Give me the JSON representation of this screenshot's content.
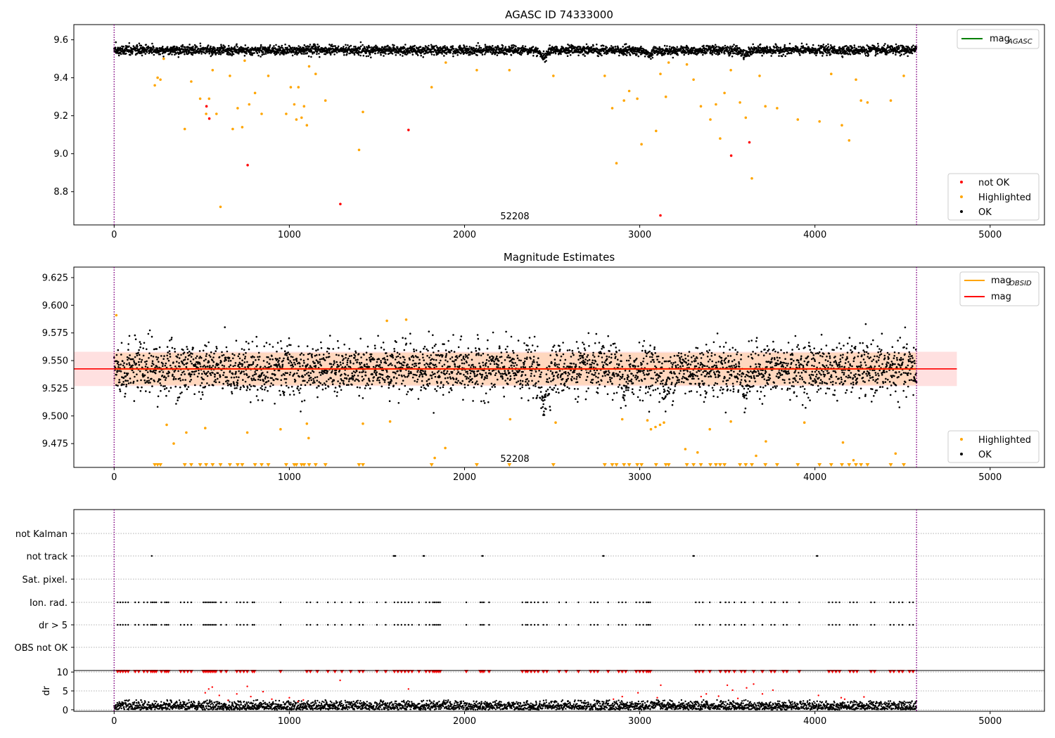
{
  "figure": {
    "title1": "AGASC ID 74333000",
    "title2": "Magnitude Estimates",
    "annotation": "52208",
    "dr_ylabel": "dr"
  },
  "colors": {
    "ok": "#000000",
    "highlighted": "#ffa500",
    "not_ok": "#ff0000",
    "mag_agasc_line": "#008000",
    "mag_obsid_line": "#ffa500",
    "mag_line": "#ff0000",
    "obs_boundary": "#800080",
    "band_orange": "#ffa500",
    "band_red": "#ff0000"
  },
  "chart_data": [
    {
      "id": "agasc",
      "type": "scatter",
      "title": "AGASC ID 74333000",
      "xlim": [
        -230,
        5310
      ],
      "ylim": [
        8.625,
        9.68
      ],
      "xticks": [
        0,
        1000,
        2000,
        3000,
        4000,
        5000
      ],
      "yticks": [
        8.8,
        9.0,
        9.2,
        9.4,
        9.6
      ],
      "ytick_labels": [
        "8.8",
        "9.0",
        "9.2",
        "9.4",
        "9.6"
      ],
      "obs_boundaries": [
        0,
        4580
      ],
      "annotation": {
        "text": "52208",
        "x": 2290,
        "y": 8.635
      },
      "legend_lines": [
        {
          "label": "mag",
          "subscript": "AGASC",
          "color": "#008000"
        }
      ],
      "legend_points": [
        {
          "label": "not OK",
          "color": "#ff0000"
        },
        {
          "label": "Highlighted",
          "color": "#ffa500"
        },
        {
          "label": "OK",
          "color": "#000000"
        }
      ],
      "ok_band": {
        "x_start": 0,
        "x_end": 4580,
        "center": 9.545,
        "dips": [
          [
            2450,
            9.51
          ],
          [
            3050,
            9.52
          ],
          [
            3600,
            9.52
          ]
        ]
      },
      "series": [
        {
          "name": "not OK",
          "color": "#ff0000",
          "x": [
            527,
            543,
            762,
            1291,
            1680,
            3118,
            3522,
            3626
          ],
          "y": [
            9.25,
            9.185,
            8.94,
            8.735,
            9.125,
            8.675,
            8.99,
            9.06
          ]
        },
        {
          "name": "Highlighted",
          "color": "#ffa500",
          "x": [
            232,
            248,
            264,
            283,
            403,
            440,
            491,
            525,
            542,
            562,
            584,
            607,
            661,
            677,
            705,
            731,
            745,
            771,
            804,
            842,
            880,
            982,
            1008,
            1028,
            1040,
            1052,
            1070,
            1084,
            1100,
            1113,
            1150,
            1206,
            1398,
            1420,
            1812,
            1893,
            2070,
            2256,
            2507,
            2800,
            2843,
            2867,
            2910,
            2940,
            2986,
            3010,
            3093,
            3118,
            3149,
            3165,
            3269,
            3307,
            3349,
            3403,
            3435,
            3459,
            3484,
            3520,
            3572,
            3605,
            3640,
            3684,
            3717,
            3784,
            3902,
            4026,
            4093,
            4154,
            4195,
            4234,
            4263,
            4300,
            4433,
            4507
          ],
          "y": [
            9.36,
            9.4,
            9.39,
            9.5,
            9.13,
            9.38,
            9.29,
            9.21,
            9.29,
            9.44,
            9.21,
            8.72,
            9.41,
            9.13,
            9.24,
            9.14,
            9.49,
            9.26,
            9.32,
            9.21,
            9.41,
            9.21,
            9.35,
            9.26,
            9.18,
            9.35,
            9.19,
            9.25,
            9.15,
            9.46,
            9.42,
            9.28,
            9.02,
            9.22,
            9.35,
            9.48,
            9.44,
            9.44,
            9.41,
            9.41,
            9.24,
            8.95,
            9.28,
            9.33,
            9.29,
            9.05,
            9.12,
            9.42,
            9.3,
            9.48,
            9.47,
            9.39,
            9.25,
            9.18,
            9.26,
            9.08,
            9.32,
            9.44,
            9.27,
            9.19,
            8.87,
            9.41,
            9.25,
            9.24,
            9.18,
            9.17,
            9.42,
            9.15,
            9.07,
            9.39,
            9.28,
            9.27,
            9.28,
            9.41
          ]
        }
      ]
    },
    {
      "id": "mag_estimates",
      "type": "scatter",
      "title": "Magnitude Estimates",
      "xlim": [
        -230,
        5310
      ],
      "ylim": [
        9.4535,
        9.6345
      ],
      "xticks": [
        0,
        1000,
        2000,
        3000,
        4000,
        5000
      ],
      "yticks": [
        9.475,
        9.5,
        9.525,
        9.55,
        9.575,
        9.6,
        9.625
      ],
      "ytick_labels": [
        "9.475",
        "9.500",
        "9.525",
        "9.550",
        "9.575",
        "9.600",
        "9.625"
      ],
      "obs_boundaries": [
        0,
        4580
      ],
      "annotation": {
        "text": "52208",
        "x": 2290,
        "y": 9.4555
      },
      "legend_lines": [
        {
          "label": "mag",
          "subscript": "OBSID",
          "color": "#ffa500"
        },
        {
          "label": "mag",
          "subscript": "",
          "color": "#ff0000"
        }
      ],
      "legend_points": [
        {
          "label": "Highlighted",
          "color": "#ffa500"
        },
        {
          "label": "OK",
          "color": "#000000"
        }
      ],
      "mag": 9.5425,
      "mag_band": [
        9.527,
        9.558
      ],
      "mag_xrange": [
        -230,
        4810
      ],
      "mag_obsid": 9.5425,
      "mag_obsid_band": [
        9.528,
        9.557
      ],
      "mag_obsid_xrange": [
        0,
        4580
      ],
      "ok_band": {
        "x_start": 0,
        "x_end": 4580,
        "center": 9.542,
        "dips": [
          [
            2450,
            9.515
          ],
          [
            2920,
            9.525
          ],
          [
            3150,
            9.525
          ],
          [
            3600,
            9.528
          ]
        ]
      },
      "series": [
        {
          "name": "Highlighted",
          "color": "#ffa500",
          "x": [
            12,
            1557,
            1667,
            1575,
            3044,
            3064,
            3090,
            3116,
            3138,
            300,
            340,
            412,
            520,
            760,
            950,
            1100,
            1110,
            1420,
            1830,
            1890,
            2260,
            2520,
            2900,
            3260,
            3330,
            3400,
            3520,
            3664,
            3720,
            3940,
            4160,
            4220,
            4460
          ],
          "y": [
            9.591,
            9.586,
            9.587,
            9.495,
            9.496,
            9.488,
            9.49,
            9.492,
            9.494,
            9.492,
            9.475,
            9.485,
            9.489,
            9.485,
            9.488,
            9.493,
            9.48,
            9.493,
            9.462,
            9.471,
            9.497,
            9.494,
            9.497,
            9.47,
            9.467,
            9.488,
            9.495,
            9.464,
            9.477,
            9.494,
            9.476,
            9.46,
            9.466
          ]
        },
        {
          "name": "Highlighted (below axis)",
          "color": "#ffa500",
          "x": [
            232,
            248,
            264,
            403,
            440,
            491,
            525,
            562,
            607,
            661,
            705,
            731,
            804,
            842,
            880,
            982,
            1028,
            1040,
            1070,
            1084,
            1113,
            1150,
            1206,
            1398,
            1420,
            1812,
            2070,
            2256,
            2507,
            2800,
            2843,
            2867,
            2910,
            2940,
            2986,
            3010,
            3093,
            3149,
            3165,
            3269,
            3307,
            3349,
            3403,
            3435,
            3459,
            3484,
            3572,
            3605,
            3640,
            3717,
            3784,
            3902,
            4026,
            4093,
            4154,
            4195,
            4234,
            4263,
            4300,
            4433,
            4507
          ],
          "y": [
            9.4535,
            9.4535,
            9.4535,
            9.4535,
            9.4535,
            9.4535,
            9.4535,
            9.4535,
            9.4535,
            9.4535,
            9.4535,
            9.4535,
            9.4535,
            9.4535,
            9.4535,
            9.4535,
            9.4535,
            9.4535,
            9.4535,
            9.4535,
            9.4535,
            9.4535,
            9.4535,
            9.4535,
            9.4535,
            9.4535,
            9.4535,
            9.4535,
            9.4535,
            9.4535,
            9.4535,
            9.4535,
            9.4535,
            9.4535,
            9.4535,
            9.4535,
            9.4535,
            9.4535,
            9.4535,
            9.4535,
            9.4535,
            9.4535,
            9.4535,
            9.4535,
            9.4535,
            9.4535,
            9.4535,
            9.4535,
            9.4535,
            9.4535,
            9.4535,
            9.4535,
            9.4535,
            9.4535,
            9.4535,
            9.4535,
            9.4535,
            9.4535,
            9.4535,
            9.4535,
            9.4535
          ]
        }
      ]
    },
    {
      "id": "flags",
      "type": "scatter",
      "xlim": [
        -230,
        5310
      ],
      "categories": [
        "not Kalman",
        "not track",
        "Sat. pixel.",
        "Ion. rad.",
        "dr > 5",
        "OBS not OK"
      ],
      "obs_boundaries": [
        0,
        4580
      ],
      "series": [
        {
          "name": "not track",
          "color": "#000000",
          "x": [
            215,
            1595,
            1600,
            1605,
            1765,
            1770,
            2100,
            2105,
            2790,
            2795,
            3305,
            3310,
            4010,
            4015
          ]
        },
        {
          "name": "Ion. rad.",
          "color": "#000000",
          "x": [
            20,
            35,
            50,
            65,
            80,
            120,
            140,
            170,
            190,
            210,
            220,
            230,
            240,
            270,
            290,
            300,
            310,
            380,
            400,
            420,
            440,
            510,
            520,
            530,
            540,
            550,
            560,
            570,
            580,
            610,
            640,
            700,
            720,
            740,
            760,
            790,
            800,
            950,
            1100,
            1120,
            1160,
            1220,
            1260,
            1300,
            1350,
            1400,
            1420,
            1500,
            1550,
            1600,
            1620,
            1640,
            1660,
            1680,
            1700,
            1740,
            1780,
            1800,
            1820,
            1830,
            1840,
            1850,
            1860,
            2010,
            2090,
            2100,
            2110,
            2140,
            2330,
            2350,
            2360,
            2380,
            2400,
            2420,
            2450,
            2470,
            2540,
            2580,
            2650,
            2720,
            2740,
            2760,
            2820,
            2880,
            2900,
            2920,
            2980,
            3000,
            3020,
            3040,
            3050,
            3060,
            3320,
            3340,
            3360,
            3400,
            3460,
            3490,
            3510,
            3540,
            3580,
            3600,
            3650,
            3700,
            3750,
            3770,
            3820,
            3840,
            3910,
            4080,
            4100,
            4120,
            4140,
            4200,
            4220,
            4240,
            4320,
            4340,
            4430,
            4450,
            4480,
            4500,
            4540,
            4560
          ]
        },
        {
          "name": "dr > 5",
          "color": "#000000",
          "x": [
            20,
            35,
            50,
            65,
            80,
            120,
            140,
            170,
            190,
            210,
            220,
            230,
            240,
            270,
            290,
            300,
            310,
            380,
            400,
            420,
            440,
            510,
            520,
            530,
            540,
            550,
            560,
            570,
            580,
            610,
            640,
            700,
            720,
            740,
            760,
            790,
            800,
            950,
            1100,
            1120,
            1160,
            1220,
            1260,
            1300,
            1350,
            1400,
            1420,
            1500,
            1550,
            1600,
            1620,
            1640,
            1660,
            1680,
            1700,
            1740,
            1780,
            1800,
            1820,
            1830,
            1840,
            1850,
            1860,
            2010,
            2090,
            2100,
            2110,
            2140,
            2330,
            2350,
            2360,
            2380,
            2400,
            2420,
            2450,
            2470,
            2540,
            2580,
            2650,
            2720,
            2740,
            2760,
            2820,
            2880,
            2900,
            2920,
            2980,
            3000,
            3020,
            3040,
            3050,
            3060,
            3320,
            3340,
            3360,
            3400,
            3460,
            3490,
            3510,
            3540,
            3580,
            3600,
            3650,
            3700,
            3750,
            3770,
            3820,
            3840,
            3910,
            4080,
            4100,
            4120,
            4140,
            4200,
            4220,
            4240,
            4320,
            4340,
            4430,
            4450,
            4480,
            4500,
            4540,
            4560
          ]
        }
      ]
    },
    {
      "id": "dr",
      "type": "scatter",
      "ylabel": "dr",
      "xlim": [
        -230,
        5310
      ],
      "ylim": [
        -0.4,
        10.4
      ],
      "yticks": [
        0,
        5,
        10
      ],
      "xticks": [
        0,
        1000,
        2000,
        3000,
        4000,
        5000
      ],
      "obs_boundaries": [
        0,
        4580
      ],
      "dr_band": {
        "x_start": 0,
        "x_end": 4580,
        "center": 0.9,
        "spread": 0.8
      },
      "capped_x": [
        20,
        35,
        50,
        65,
        80,
        120,
        140,
        170,
        190,
        210,
        220,
        230,
        240,
        270,
        290,
        300,
        310,
        380,
        400,
        420,
        440,
        510,
        520,
        530,
        540,
        550,
        560,
        570,
        580,
        610,
        640,
        700,
        720,
        740,
        760,
        790,
        800,
        950,
        1100,
        1120,
        1160,
        1220,
        1260,
        1300,
        1350,
        1400,
        1420,
        1500,
        1550,
        1600,
        1620,
        1640,
        1660,
        1680,
        1700,
        1740,
        1780,
        1800,
        1820,
        1830,
        1840,
        1850,
        1860,
        2010,
        2090,
        2100,
        2110,
        2140,
        2330,
        2350,
        2360,
        2380,
        2400,
        2420,
        2450,
        2470,
        2540,
        2580,
        2650,
        2720,
        2740,
        2760,
        2820,
        2880,
        2900,
        2920,
        2980,
        3000,
        3020,
        3040,
        3050,
        3060,
        3320,
        3340,
        3360,
        3400,
        3460,
        3490,
        3510,
        3540,
        3580,
        3600,
        3650,
        3700,
        3750,
        3770,
        3820,
        3840,
        3910,
        4080,
        4100,
        4120,
        4140,
        4200,
        4220,
        4240,
        4320,
        4340,
        4430,
        4450,
        4480,
        4500,
        4540,
        4560
      ],
      "scattered_red": {
        "x": [
          520,
          540,
          560,
          600,
          650,
          700,
          760,
          780,
          850,
          900,
          1000,
          1050,
          1080,
          1290,
          1680,
          2850,
          2900,
          2990,
          3100,
          3120,
          3350,
          3380,
          3450,
          3500,
          3530,
          3560,
          3610,
          3650,
          3700,
          3760,
          4020,
          4150,
          4170,
          4280
        ],
        "y": [
          4.5,
          5.5,
          6,
          3.8,
          2.5,
          4.2,
          6.2,
          3.5,
          4.8,
          2.8,
          3.2,
          2.2,
          2.6,
          7.8,
          5.5,
          2.8,
          3.5,
          4.5,
          3.2,
          6.5,
          3.5,
          4.2,
          3.6,
          6.5,
          5.2,
          3.0,
          5.8,
          6.8,
          4.2,
          5.2,
          3.8,
          3.2,
          2.8,
          3.4
        ]
      }
    }
  ]
}
